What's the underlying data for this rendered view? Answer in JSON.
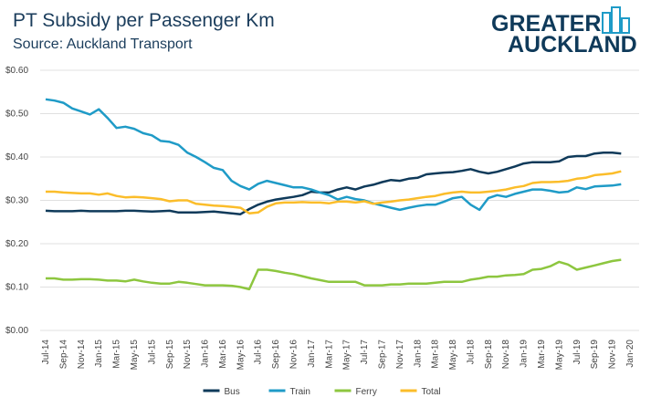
{
  "logo": [
    "GREATER",
    "AUCKLAND"
  ],
  "chart_data": {
    "type": "line",
    "title": "PT Subsidy per Passenger Km",
    "subtitle": "Source: Auckland Transport",
    "categories": [
      "Jul-14",
      null,
      "Sep-14",
      null,
      "Nov-14",
      null,
      "Jan-15",
      null,
      "Mar-15",
      null,
      "May-15",
      null,
      "Jul-15",
      null,
      "Sep-15",
      null,
      "Nov-15",
      null,
      "Jan-16",
      null,
      "Mar-16",
      null,
      "May-16",
      null,
      "Jul-16",
      null,
      "Sep-16",
      null,
      "Nov-16",
      null,
      "Jan-17",
      null,
      "Mar-17",
      null,
      "May-17",
      null,
      "Jul-17",
      null,
      "Sep-17",
      null,
      "Nov-17",
      null,
      "Jan-18",
      null,
      "Mar-18",
      null,
      "May-18",
      null,
      "Jul-18",
      null,
      "Sep-18",
      null,
      "Nov-18",
      null,
      "Jan-19",
      null,
      "Mar-19",
      null,
      "May-19",
      null,
      "Jul-19",
      null,
      "Sep-19",
      null,
      "Nov-19",
      null,
      "Jan-20"
    ],
    "series": [
      {
        "name": "Bus",
        "color": "#0f3a5a",
        "values": [
          0.276,
          0.275,
          0.275,
          0.275,
          0.276,
          0.275,
          0.275,
          0.275,
          0.275,
          0.276,
          0.276,
          0.275,
          0.274,
          0.275,
          0.276,
          0.272,
          0.272,
          0.272,
          0.273,
          0.274,
          0.272,
          0.27,
          0.268,
          0.28,
          0.29,
          0.297,
          0.302,
          0.305,
          0.308,
          0.312,
          0.32,
          0.318,
          0.318,
          0.325,
          0.33,
          0.325,
          0.332,
          0.336,
          0.342,
          0.347,
          0.345,
          0.35,
          0.352,
          0.36,
          0.362,
          0.364,
          0.365,
          0.368,
          0.372,
          0.366,
          0.362,
          0.366,
          0.372,
          0.378,
          0.385,
          0.388,
          0.388,
          0.388,
          0.39,
          0.4,
          0.402,
          0.402,
          0.408,
          0.41,
          0.41,
          0.408,
          null
        ]
      },
      {
        "name": "Train",
        "color": "#1f9bc7",
        "values": [
          0.533,
          0.53,
          0.525,
          0.512,
          0.505,
          0.498,
          0.51,
          0.49,
          0.467,
          0.47,
          0.465,
          0.455,
          0.45,
          0.437,
          0.435,
          0.428,
          0.41,
          0.4,
          0.388,
          0.375,
          0.37,
          0.345,
          0.333,
          0.325,
          0.338,
          0.345,
          0.34,
          0.335,
          0.33,
          0.33,
          0.325,
          0.318,
          0.312,
          0.302,
          0.308,
          0.303,
          0.3,
          0.293,
          0.288,
          0.283,
          0.278,
          0.283,
          0.287,
          0.29,
          0.29,
          0.297,
          0.305,
          0.308,
          0.29,
          0.278,
          0.305,
          0.312,
          0.308,
          0.315,
          0.32,
          0.325,
          0.325,
          0.322,
          0.318,
          0.32,
          0.33,
          0.326,
          0.332,
          0.333,
          0.334,
          0.337,
          null
        ]
      },
      {
        "name": "Ferry",
        "color": "#8dc63f",
        "values": [
          0.12,
          0.12,
          0.117,
          0.117,
          0.118,
          0.118,
          0.117,
          0.115,
          0.115,
          0.113,
          0.117,
          0.113,
          0.11,
          0.108,
          0.108,
          0.112,
          0.11,
          0.107,
          0.104,
          0.104,
          0.104,
          0.103,
          0.1,
          0.095,
          0.14,
          0.14,
          0.137,
          0.133,
          0.13,
          0.125,
          0.12,
          0.116,
          0.112,
          0.112,
          0.112,
          0.112,
          0.104,
          0.104,
          0.104,
          0.106,
          0.106,
          0.108,
          0.108,
          0.108,
          0.11,
          0.112,
          0.112,
          0.112,
          0.117,
          0.12,
          0.124,
          0.124,
          0.127,
          0.128,
          0.13,
          0.14,
          0.142,
          0.148,
          0.158,
          0.152,
          0.14,
          0.145,
          0.15,
          0.155,
          0.16,
          0.163,
          null
        ]
      },
      {
        "name": "Total",
        "color": "#fbbd2a",
        "values": [
          0.32,
          0.32,
          0.318,
          0.317,
          0.316,
          0.316,
          0.313,
          0.316,
          0.31,
          0.307,
          0.308,
          0.307,
          0.305,
          0.303,
          0.298,
          0.3,
          0.3,
          0.292,
          0.29,
          0.288,
          0.287,
          0.285,
          0.283,
          0.27,
          0.272,
          0.285,
          0.293,
          0.295,
          0.295,
          0.296,
          0.295,
          0.295,
          0.293,
          0.297,
          0.297,
          0.295,
          0.298,
          0.292,
          0.295,
          0.297,
          0.3,
          0.302,
          0.305,
          0.308,
          0.31,
          0.315,
          0.318,
          0.32,
          0.318,
          0.318,
          0.32,
          0.322,
          0.325,
          0.33,
          0.333,
          0.34,
          0.342,
          0.342,
          0.343,
          0.345,
          0.35,
          0.352,
          0.358,
          0.36,
          0.362,
          0.367,
          null
        ]
      }
    ],
    "ylim": [
      0,
      0.6
    ],
    "yticks": [
      {
        "value": 0,
        "label": "$0.00"
      },
      {
        "value": 0.1,
        "label": "$0.10"
      },
      {
        "value": 0.2,
        "label": "$0.20"
      },
      {
        "value": 0.3,
        "label": "$0.30"
      },
      {
        "value": 0.4,
        "label": "$0.40"
      },
      {
        "value": 0.5,
        "label": "$0.50"
      },
      {
        "value": 0.6,
        "label": "$0.60"
      }
    ],
    "grid": true,
    "legend": "bottom"
  }
}
